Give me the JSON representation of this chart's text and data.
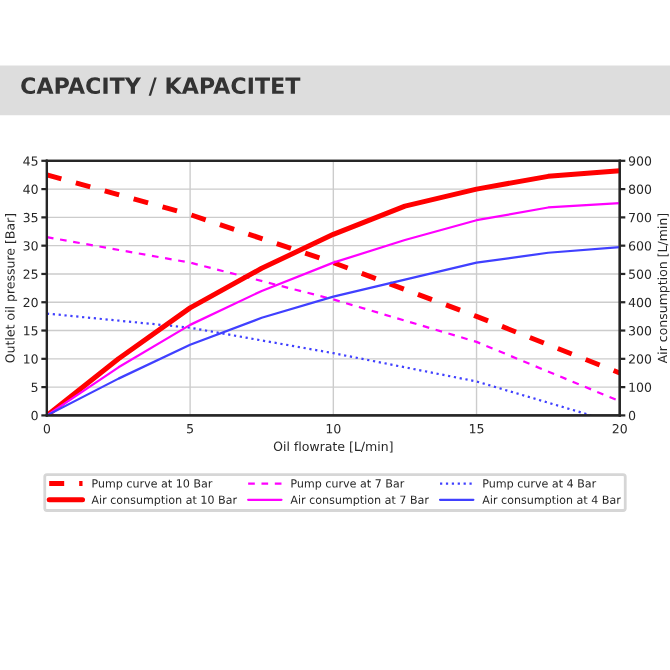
{
  "chart_data": {
    "type": "line",
    "title": "CAPACITY / KAPACITET",
    "xlabel": "Oil flowrate [L/min]",
    "ylabel": "Outlet oil pressure [Bar]",
    "y2label": "Air consumption [L/min]",
    "xlim": [
      0,
      20
    ],
    "xticks": [
      0,
      5,
      10,
      15,
      20
    ],
    "ylim": [
      0,
      45
    ],
    "yticks": [
      0,
      5,
      10,
      15,
      20,
      25,
      30,
      35,
      40,
      45
    ],
    "y2lim": [
      0,
      900
    ],
    "y2ticks": [
      0,
      100,
      200,
      300,
      400,
      500,
      600,
      700,
      800,
      900
    ],
    "grid": true,
    "legend": "bottom",
    "series": [
      {
        "name": "Pump curve at 10 Bar",
        "color": "#ff0000",
        "line_style": "dashed",
        "x": [
          0,
          5,
          10,
          15,
          20
        ],
        "values": [
          42.5,
          35.5,
          27,
          17.5,
          7.5
        ]
      },
      {
        "name": "Pump curve at 7 Bar",
        "color": "#ff00ff",
        "line_style": "dashed",
        "x": [
          0,
          5,
          10,
          15,
          20
        ],
        "values": [
          31.5,
          27,
          20.5,
          13,
          2.5
        ]
      },
      {
        "name": "Pump curve at 4 Bar",
        "color": "#4040ff",
        "line_style": "dotted",
        "x": [
          0,
          5,
          10,
          15,
          19
        ],
        "values": [
          18,
          15.5,
          11,
          6,
          0
        ]
      },
      {
        "name": "Air consumption at 10 Bar",
        "color": "#ff0000",
        "line_style": "solid",
        "axis": "y2",
        "x": [
          0,
          2.5,
          5,
          7.5,
          10,
          12.5,
          15,
          17.5,
          20
        ],
        "values": [
          0,
          200,
          380,
          520,
          640,
          740,
          800,
          845,
          865
        ]
      },
      {
        "name": "Air consumption at 7 Bar",
        "color": "#ff00ff",
        "line_style": "solid",
        "axis": "y2",
        "x": [
          0,
          2.5,
          5,
          7.5,
          10,
          12.5,
          15,
          17.5,
          20
        ],
        "values": [
          0,
          170,
          320,
          440,
          540,
          620,
          690,
          735,
          750
        ]
      },
      {
        "name": "Air consumption at 4 Bar",
        "color": "#4040ff",
        "line_style": "solid",
        "axis": "y2",
        "x": [
          0,
          2.5,
          5,
          7.5,
          10,
          12.5,
          15,
          17.5,
          20
        ],
        "values": [
          0,
          130,
          250,
          345,
          420,
          480,
          540,
          575,
          595
        ]
      }
    ]
  }
}
